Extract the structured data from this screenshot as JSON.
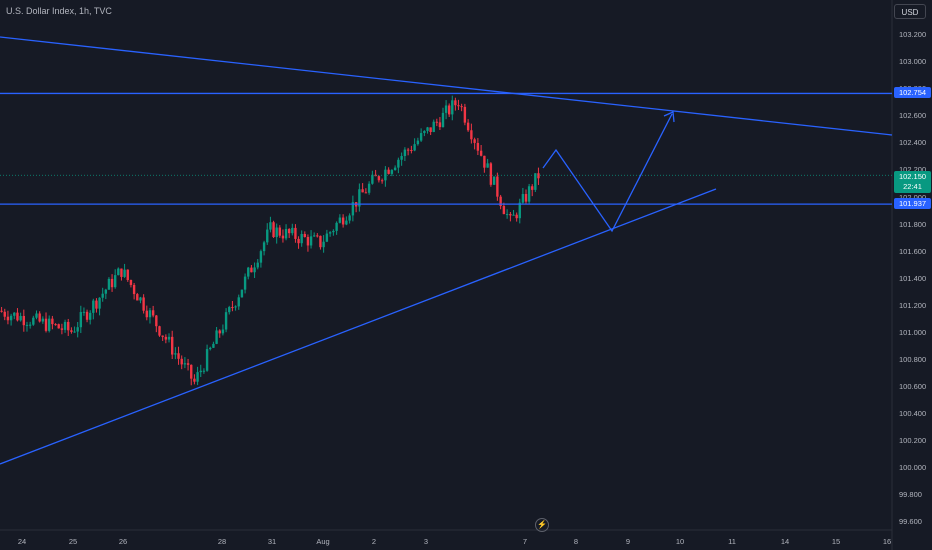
{
  "header": {
    "symbol_title": "U.S. Dollar Index, 1h, TVC"
  },
  "price_scale": {
    "currency": "USD",
    "labels": [
      "103.200",
      "103.000",
      "102.800",
      "102.600",
      "102.400",
      "102.200",
      "102.000",
      "101.800",
      "101.600",
      "101.400",
      "101.200",
      "101.000",
      "100.800",
      "100.600",
      "100.400",
      "100.200",
      "100.000",
      "99.800",
      "99.600"
    ],
    "resistance_tag": "102.754",
    "last_price_tag": "102.150",
    "countdown": "22:41",
    "support_tag": "101.937"
  },
  "time_scale": {
    "labels": [
      "24",
      "25",
      "26",
      "28",
      "31",
      "Aug",
      "2",
      "3",
      "7",
      "8",
      "9",
      "10",
      "11",
      "14",
      "15",
      "16"
    ]
  },
  "colors": {
    "background": "#161a25",
    "up_candle": "#089981",
    "down_candle": "#f23645",
    "drawing": "#2962ff",
    "axis_text": "#b2b5be"
  },
  "icons": {
    "replay": "lightning-icon"
  },
  "chart_data": {
    "type": "candlestick",
    "title": "U.S. Dollar Index, 1h, TVC",
    "ylim": [
      99.55,
      103.35
    ],
    "x_ticks": [
      "24",
      "25",
      "26",
      "28",
      "31",
      "Aug",
      "2",
      "3",
      "7",
      "8",
      "9",
      "10",
      "11",
      "14",
      "15",
      "16"
    ],
    "segments": [
      {
        "from_tick": "24",
        "from": 101.15,
        "to": 101.0
      },
      {
        "from_tick": "25",
        "from": 101.0,
        "to": 101.45
      },
      {
        "from_tick": "26",
        "from": 101.45,
        "to": 100.62
      },
      {
        "from_tick": "28",
        "from": 100.62,
        "to": 101.75
      },
      {
        "from_tick": "31",
        "from": 101.75,
        "to": 101.65
      },
      {
        "from_tick": "Aug",
        "from": 101.65,
        "to": 102.1
      },
      {
        "from_tick": "2",
        "from": 102.1,
        "to": 102.45
      },
      {
        "from_tick": "3",
        "from": 102.45,
        "to": 102.7
      },
      {
        "from_tick": "3",
        "from": 102.7,
        "to": 101.8
      },
      {
        "from_tick": "7",
        "from": 101.8,
        "to": 102.15
      }
    ],
    "drawings": {
      "horizontal_levels": [
        102.754,
        101.937
      ],
      "trendlines": [
        "descending resistance",
        "ascending support"
      ],
      "projection_path": [
        102.35,
        101.75,
        102.62
      ]
    }
  }
}
